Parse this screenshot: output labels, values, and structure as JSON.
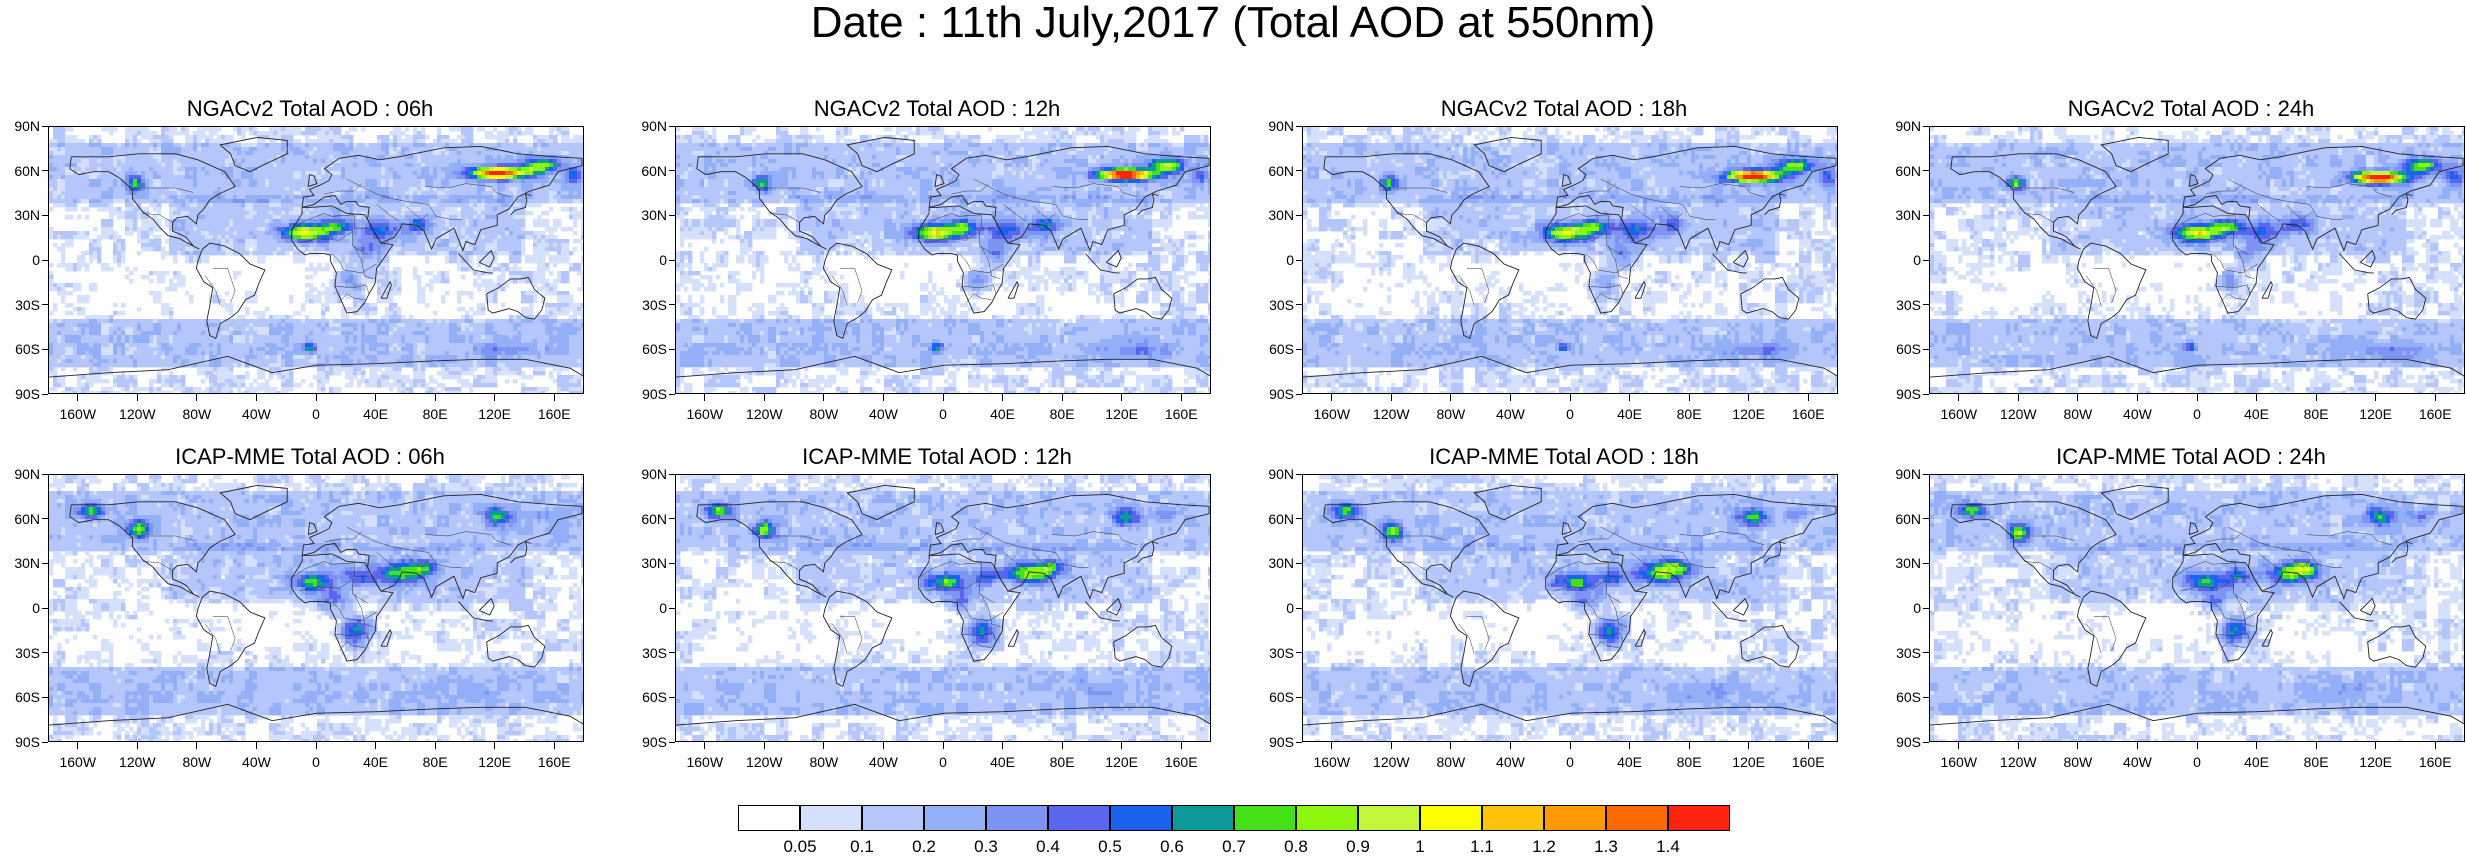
{
  "title": "Date : 11th July,2017 (Total AOD at 550nm)",
  "lat_labels": [
    "90N",
    "60N",
    "30N",
    "0",
    "30S",
    "60S",
    "90S"
  ],
  "lon_labels": [
    "160W",
    "120W",
    "80W",
    "40W",
    "0",
    "40E",
    "80E",
    "120E",
    "160E"
  ],
  "panels": [
    {
      "title": "NGACv2 Total AOD : 06h",
      "model": "NGACv2",
      "hour": "06h"
    },
    {
      "title": "NGACv2 Total AOD : 12h",
      "model": "NGACv2",
      "hour": "12h"
    },
    {
      "title": "NGACv2 Total AOD : 18h",
      "model": "NGACv2",
      "hour": "18h"
    },
    {
      "title": "NGACv2 Total AOD : 24h",
      "model": "NGACv2",
      "hour": "24h"
    },
    {
      "title": "ICAP-MME Total AOD : 06h",
      "model": "ICAP-MME",
      "hour": "06h"
    },
    {
      "title": "ICAP-MME Total AOD : 12h",
      "model": "ICAP-MME",
      "hour": "12h"
    },
    {
      "title": "ICAP-MME Total AOD : 18h",
      "model": "ICAP-MME",
      "hour": "18h"
    },
    {
      "title": "ICAP-MME Total AOD : 24h",
      "model": "ICAP-MME",
      "hour": "24h"
    }
  ],
  "colorbar": {
    "levels": [
      "0.05",
      "0.1",
      "0.2",
      "0.3",
      "0.4",
      "0.5",
      "0.6",
      "0.7",
      "0.8",
      "0.9",
      "1",
      "1.1",
      "1.2",
      "1.3",
      "1.4"
    ],
    "colors": [
      "#ffffff",
      "#d5e0fd",
      "#b4c6fb",
      "#93aff8",
      "#7d94f3",
      "#5a66ee",
      "#1b63ee",
      "#0e9a9a",
      "#44e01a",
      "#8cf50f",
      "#c3f53a",
      "#ffff00",
      "#ffc20a",
      "#ff9a05",
      "#ff6a00",
      "#ff2410"
    ]
  }
}
